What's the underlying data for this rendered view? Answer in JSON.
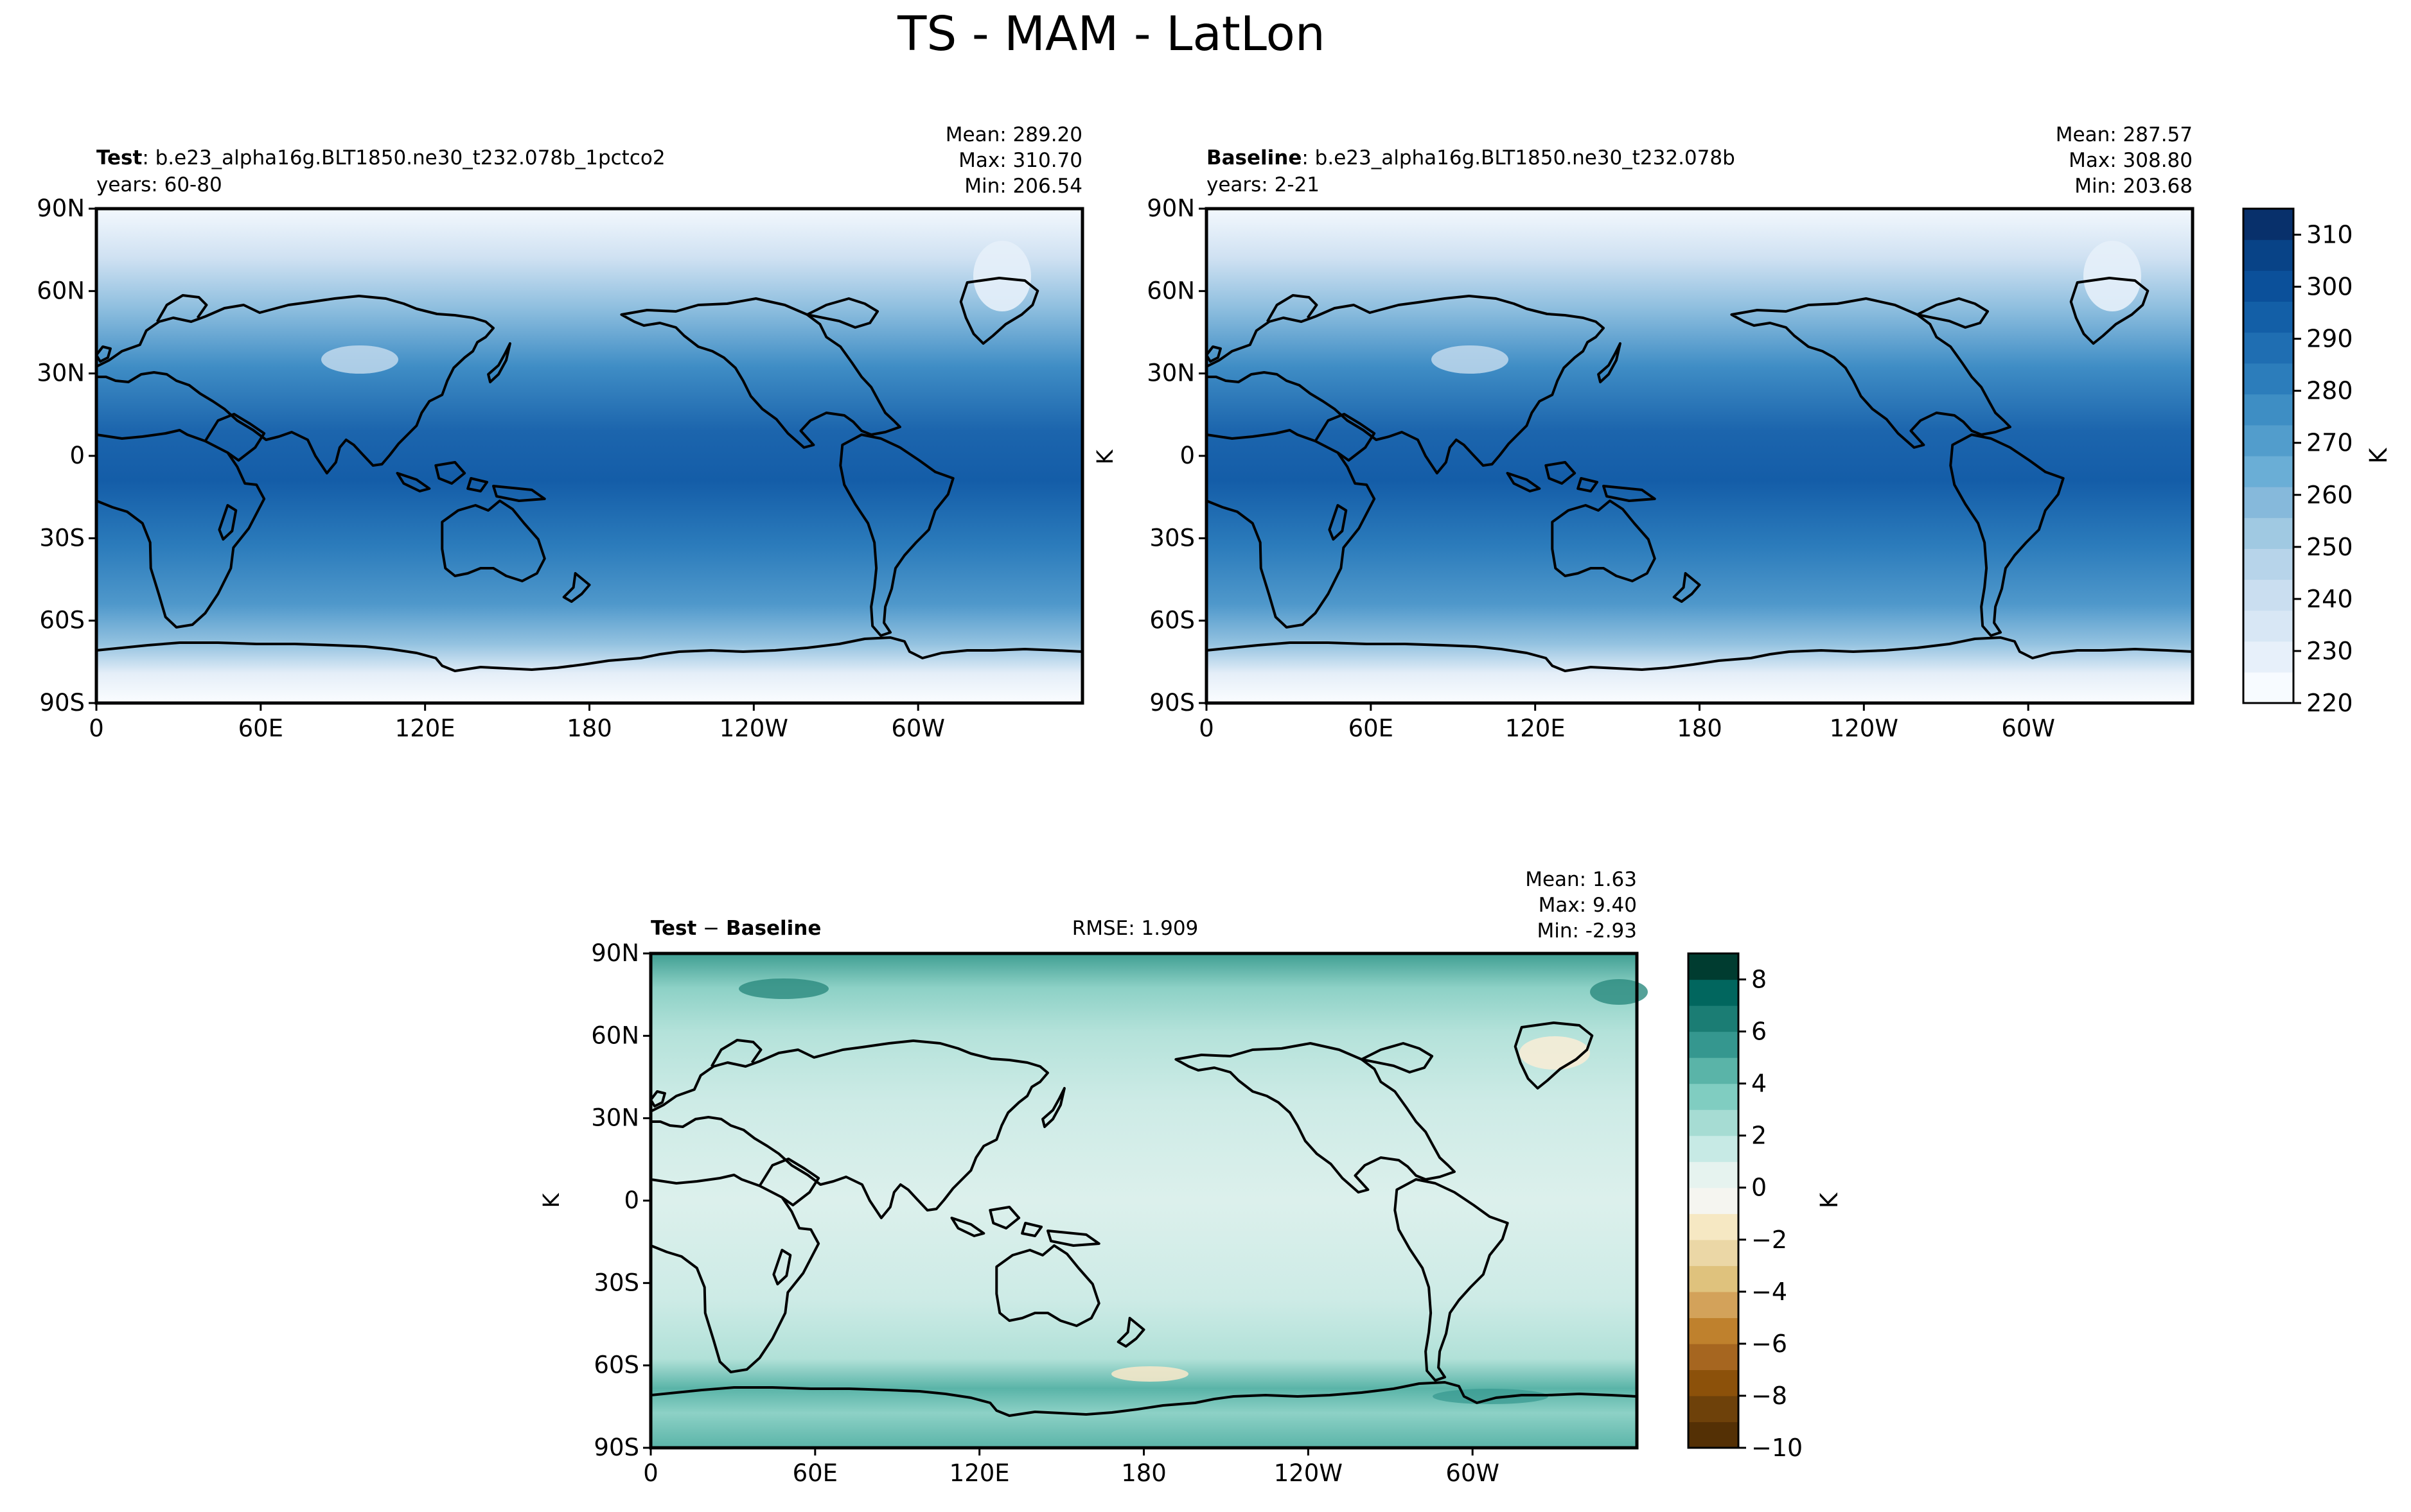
{
  "figure": {
    "title": "TS - MAM - LatLon"
  },
  "axes": {
    "lat_ticks": [
      "90N",
      "60N",
      "30N",
      "0",
      "30S",
      "60S",
      "90S"
    ],
    "lon_ticks": [
      "0",
      "60E",
      "120E",
      "180",
      "120W",
      "60W"
    ]
  },
  "panels": {
    "test": {
      "label_bold": "Test",
      "label_rest": ": b.e23_alpha16g.BLT1850.ne30_t232.078b_1pctco2",
      "years": "years: 60-80",
      "stats": [
        "Mean: 289.20",
        "Max: 310.70",
        "Min: 206.54"
      ]
    },
    "baseline": {
      "label_bold": "Baseline",
      "label_rest": ": b.e23_alpha16g.BLT1850.ne30_t232.078b",
      "years": "years: 2-21",
      "stats": [
        "Mean: 287.57",
        "Max: 308.80",
        "Min: 203.68"
      ],
      "ylabel": "K"
    },
    "diff": {
      "label_bold_a": "Test",
      "label_minus": " − ",
      "label_bold_b": "Baseline",
      "rmse": "RMSE: 1.909",
      "stats": [
        "Mean:  1.63",
        "Max:  9.40",
        "Min: -2.93"
      ],
      "ylabel": "K"
    }
  },
  "colorbars": {
    "abs": {
      "label": "K",
      "ticks": [
        "220",
        "230",
        "240",
        "250",
        "260",
        "270",
        "280",
        "290",
        "300",
        "310"
      ],
      "tick_values": [
        220,
        230,
        240,
        250,
        260,
        270,
        280,
        290,
        300,
        310
      ],
      "range": [
        220,
        315
      ],
      "colors": [
        "#f7fbff",
        "#e7f0fa",
        "#d8e7f5",
        "#cadef0",
        "#b7d4ea",
        "#a0c9e2",
        "#86b9db",
        "#6aaed6",
        "#529dcc",
        "#3e8ec4",
        "#2c7dbb",
        "#1f6eb2",
        "#135fa7",
        "#0b509a",
        "#084387",
        "#08306b"
      ]
    },
    "diff": {
      "label": "K",
      "ticks": [
        "8",
        "6",
        "4",
        "2",
        "0",
        "−2",
        "−4",
        "−6",
        "−8",
        "−10"
      ],
      "tick_values": [
        8,
        6,
        4,
        2,
        0,
        -2,
        -4,
        -6,
        -8,
        -10
      ],
      "range": [
        -10,
        9
      ],
      "colors": [
        "#543005",
        "#6e410a",
        "#8c510a",
        "#a66620",
        "#bf812d",
        "#d3a25a",
        "#dfc27d",
        "#ebd7a6",
        "#f6e8c3",
        "#f5f5f0",
        "#e6f3ef",
        "#c7eae5",
        "#a6dcd3",
        "#80cdc1",
        "#5ab4a8",
        "#35978f",
        "#1b7d74",
        "#01665e",
        "#003c30"
      ]
    }
  },
  "colors": {
    "land_line": "#000000"
  }
}
